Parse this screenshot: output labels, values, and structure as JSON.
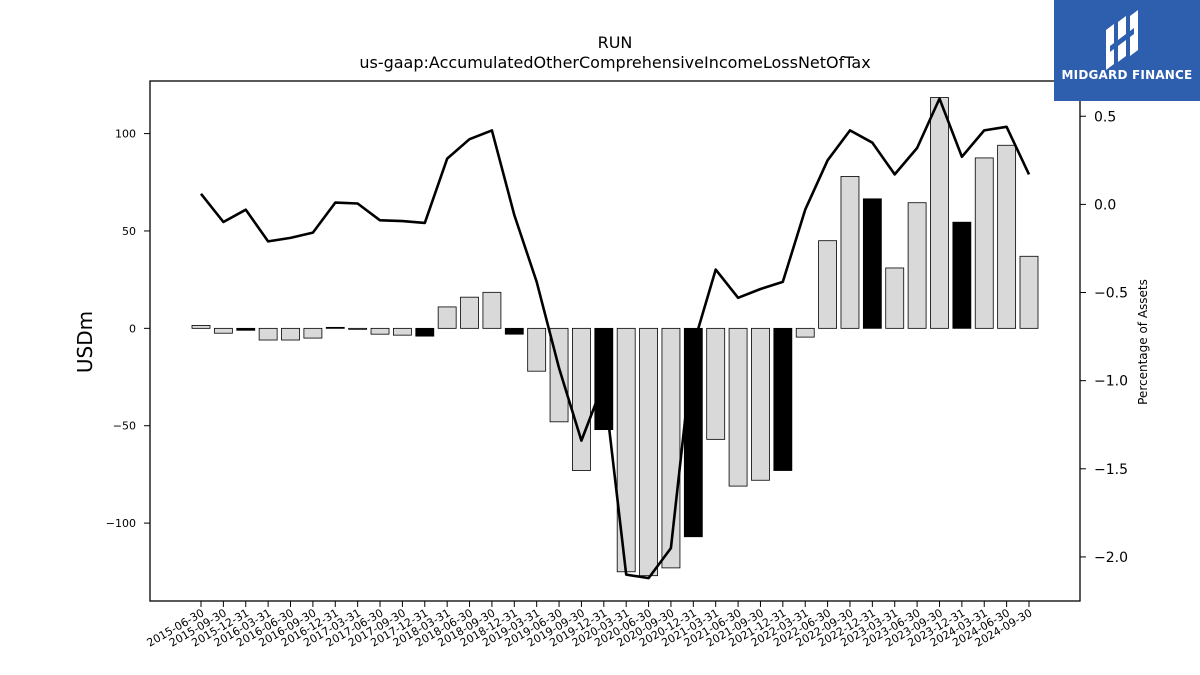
{
  "chart_data": {
    "type": "bar",
    "title": "RUN",
    "subtitle": "us-gaap:AccumulatedOtherComprehensiveIncomeLossNetOfTax",
    "ylabel": "USDm",
    "y2label": "Percentage of Assets",
    "ylim": [
      -140,
      127
    ],
    "y2lim": [
      -2.25,
      0.7
    ],
    "yticks": [
      -100,
      -50,
      0,
      50,
      100
    ],
    "y2ticks": [
      -2.0,
      -1.5,
      -1.0,
      -0.5,
      0.0,
      0.5
    ],
    "grid": false,
    "categories": [
      "2015-06-30",
      "2015-09-30",
      "2015-12-31",
      "2016-03-31",
      "2016-06-30",
      "2016-09-30",
      "2016-12-31",
      "2017-03-31",
      "2017-06-30",
      "2017-09-30",
      "2017-12-31",
      "2018-03-31",
      "2018-06-30",
      "2018-09-30",
      "2018-12-31",
      "2019-03-31",
      "2019-06-30",
      "2019-09-30",
      "2019-12-31",
      "2020-03-31",
      "2020-06-30",
      "2020-09-30",
      "2020-12-31",
      "2021-03-31",
      "2021-06-30",
      "2021-09-30",
      "2021-12-31",
      "2022-03-31",
      "2022-06-30",
      "2022-09-30",
      "2022-12-31",
      "2023-03-31",
      "2023-06-30",
      "2023-09-30",
      "2023-12-31",
      "2024-03-31",
      "2024-06-30",
      "2024-09-30"
    ],
    "series": [
      {
        "type": "bar",
        "axis": "left",
        "values": [
          1.5,
          -2.5,
          -1,
          -6,
          -6,
          -5,
          0.5,
          -0.5,
          -3,
          -3.5,
          -4,
          11,
          16,
          18.5,
          -3,
          -22,
          -48,
          -73,
          -52,
          -125,
          -127,
          -123,
          -107,
          -57,
          -81,
          -78,
          -73,
          -4.5,
          45,
          78,
          66.5,
          31,
          64.5,
          118.5,
          54.5,
          87.5,
          94,
          37
        ],
        "year_end_color": "#000000",
        "other_color": "#d9d9d9"
      },
      {
        "type": "line",
        "axis": "right",
        "color": "#000000",
        "values": [
          0.06,
          -0.1,
          -0.03,
          -0.21,
          -0.19,
          -0.16,
          0.01,
          0.005,
          -0.09,
          -0.095,
          -0.105,
          0.26,
          0.37,
          0.42,
          -0.06,
          -0.44,
          -0.93,
          -1.34,
          -1.01,
          -2.1,
          -2.12,
          -1.95,
          -0.8,
          -0.37,
          -0.53,
          -0.48,
          -0.44,
          -0.03,
          0.25,
          0.42,
          0.35,
          0.17,
          0.32,
          0.6,
          0.27,
          0.42,
          0.44,
          0.17
        ]
      }
    ]
  },
  "branding": {
    "logo_text": "MIDGARD FINANCE",
    "logo_color": "#2d5fae"
  }
}
